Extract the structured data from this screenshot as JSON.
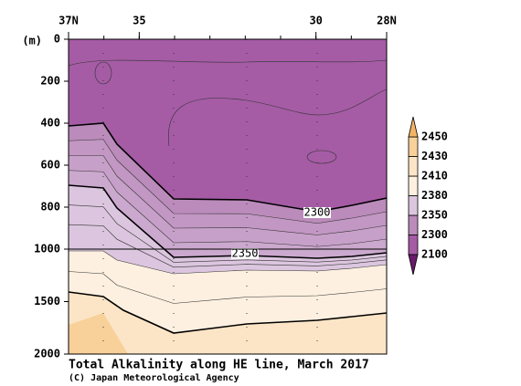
{
  "chart_data": {
    "type": "contour",
    "title": "Total Alkalinity along HE line, March 2017",
    "credit": "(C) Japan Meteorological Agency",
    "y_label": "(m)",
    "xlim": [
      37,
      28
    ],
    "xticks": [
      {
        "value": 37,
        "label": "37N"
      },
      35,
      30,
      {
        "value": 28,
        "label": "28N"
      }
    ],
    "ylim": [
      0,
      2000
    ],
    "yticks": [
      0,
      200,
      400,
      600,
      800,
      1000,
      1500,
      2000
    ],
    "y_break": 1000,
    "levels": [
      2100,
      2300,
      2350,
      2380,
      2410,
      2430,
      2450
    ],
    "colors": [
      "#6a1a6a",
      "#a55ca5",
      "#bb8bbb",
      "#dcc6df",
      "#fdf0e0",
      "#fce5c6",
      "#f8d09a",
      "#f4b465"
    ],
    "contour_labels": [
      2300,
      2350
    ]
  }
}
